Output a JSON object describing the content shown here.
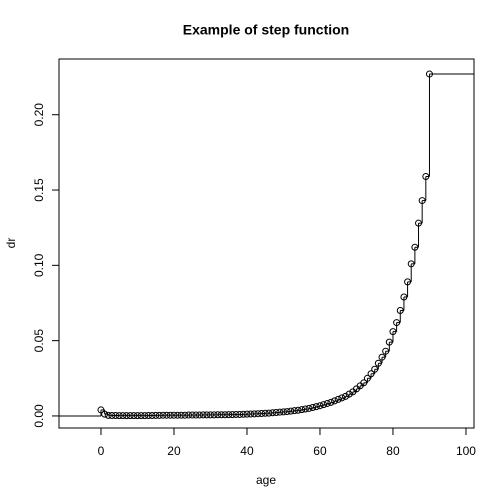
{
  "chart_data": {
    "type": "step",
    "title": "Example of step function",
    "x_label": "age",
    "y_label": "dr",
    "x": [
      0,
      1,
      2,
      3,
      4,
      5,
      6,
      7,
      8,
      9,
      10,
      11,
      12,
      13,
      14,
      15,
      16,
      17,
      18,
      19,
      20,
      21,
      22,
      23,
      24,
      25,
      26,
      27,
      28,
      29,
      30,
      31,
      32,
      33,
      34,
      35,
      36,
      37,
      38,
      39,
      40,
      41,
      42,
      43,
      44,
      45,
      46,
      47,
      48,
      49,
      50,
      51,
      52,
      53,
      54,
      55,
      56,
      57,
      58,
      59,
      60,
      61,
      62,
      63,
      64,
      65,
      66,
      67,
      68,
      69,
      70,
      71,
      72,
      73,
      74,
      75,
      76,
      77,
      78,
      79,
      80,
      81,
      82,
      83,
      84,
      85,
      86,
      87,
      88,
      89,
      90
    ],
    "values": [
      0.004,
      0.0012,
      0.0004,
      0.0003,
      0.0003,
      0.0002,
      0.0002,
      0.0002,
      0.0002,
      0.0002,
      0.0002,
      0.0002,
      0.0002,
      0.0003,
      0.0003,
      0.0004,
      0.0004,
      0.0005,
      0.0005,
      0.0005,
      0.0005,
      0.0005,
      0.0005,
      0.0005,
      0.0006,
      0.0006,
      0.0006,
      0.0006,
      0.0007,
      0.0007,
      0.0007,
      0.0007,
      0.0008,
      0.0008,
      0.0008,
      0.0009,
      0.0009,
      0.001,
      0.001,
      0.0011,
      0.0012,
      0.0013,
      0.0014,
      0.0015,
      0.0016,
      0.0018,
      0.0019,
      0.0021,
      0.0023,
      0.0025,
      0.0027,
      0.0029,
      0.0032,
      0.0035,
      0.0038,
      0.0042,
      0.0046,
      0.005,
      0.0056,
      0.0062,
      0.0068,
      0.0075,
      0.0083,
      0.009,
      0.01,
      0.011,
      0.012,
      0.013,
      0.0145,
      0.016,
      0.018,
      0.02,
      0.022,
      0.025,
      0.028,
      0.031,
      0.035,
      0.039,
      0.043,
      0.049,
      0.056,
      0.062,
      0.07,
      0.079,
      0.089,
      0.101,
      0.112,
      0.128,
      0.143,
      0.159,
      0.227
    ],
    "yleft": 0,
    "xlim": [
      -11.5,
      102.2
    ],
    "ylim": [
      -0.008,
      0.237
    ],
    "xticks": [
      0,
      20,
      40,
      60,
      80,
      100
    ],
    "yticks": [
      {
        "value": 0,
        "label": "0.00"
      },
      {
        "value": 0.05,
        "label": "0.05"
      },
      {
        "value": 0.1,
        "label": "0.10"
      },
      {
        "value": 0.15,
        "label": "0.15"
      },
      {
        "value": 0.2,
        "label": "0.20"
      }
    ],
    "color": "#000000"
  }
}
